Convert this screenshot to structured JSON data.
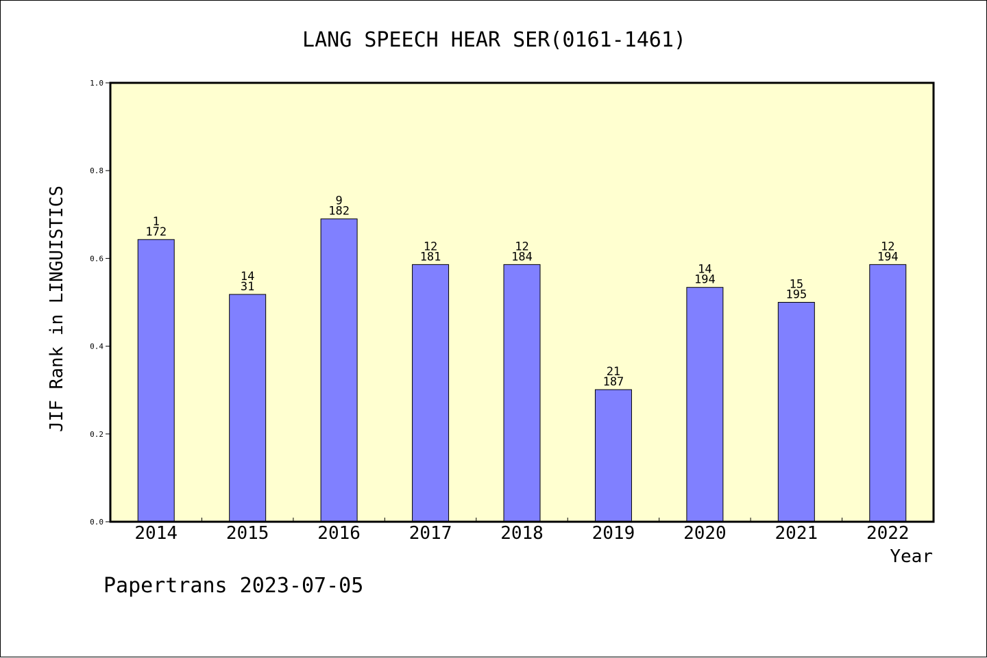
{
  "chart_data": {
    "type": "bar",
    "title": "LANG SPEECH HEAR SER(0161-1461)",
    "xlabel": "Year",
    "ylabel": "JIF Rank in LINGUISTICS",
    "ylim": [
      0,
      1.0
    ],
    "yticks": [
      "0.0",
      "0.2",
      "0.4",
      "0.6",
      "0.8",
      "1.0"
    ],
    "grid": false,
    "categories": [
      "2014",
      "2015",
      "2016",
      "2017",
      "2018",
      "2019",
      "2020",
      "2021",
      "2022"
    ],
    "values": [
      0.643,
      0.518,
      0.69,
      0.586,
      0.586,
      0.301,
      0.534,
      0.5,
      0.586
    ],
    "label_rank": [
      "1",
      "14",
      "9",
      "12",
      "12",
      "21",
      "14",
      "15",
      "12"
    ],
    "label_total": [
      "172",
      "31",
      "182",
      "181",
      "184",
      "187",
      "194",
      "195",
      "194"
    ],
    "colors": {
      "bar": "#8080ff",
      "plot_background": "#ffffd0",
      "axis": "#000000"
    }
  },
  "footer": {
    "text": "Papertrans 2023-07-05"
  }
}
